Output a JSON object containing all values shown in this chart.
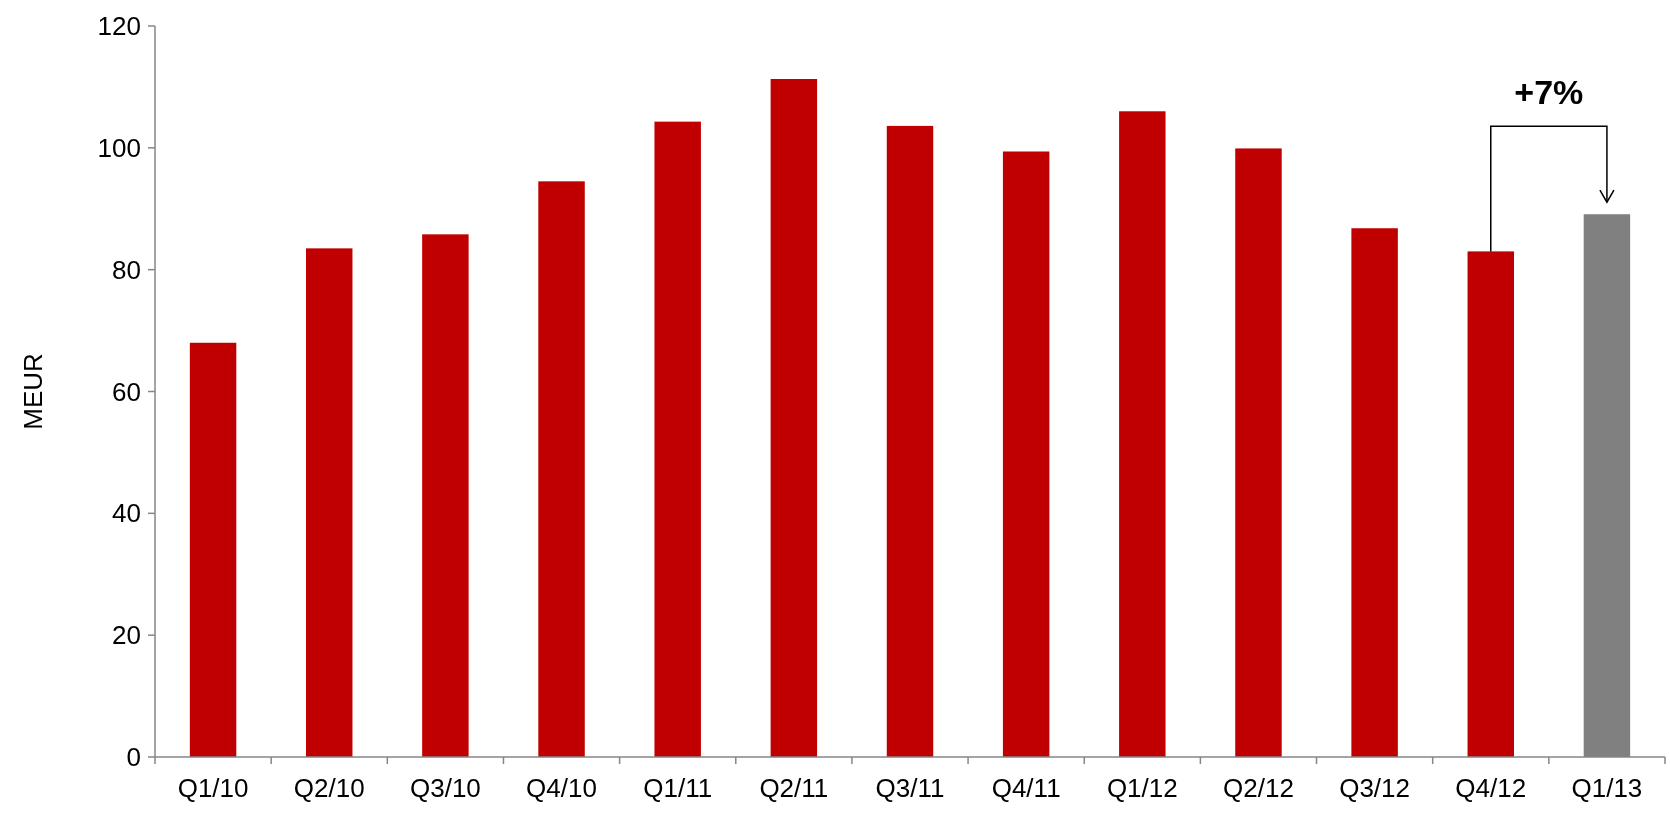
{
  "chart_data": {
    "type": "bar",
    "ylabel": "MEUR",
    "categories": [
      "Q1/10",
      "Q2/10",
      "Q3/10",
      "Q4/10",
      "Q1/11",
      "Q2/11",
      "Q3/11",
      "Q4/11",
      "Q1/12",
      "Q2/12",
      "Q3/12",
      "Q4/12",
      "Q1/13"
    ],
    "values": [
      68,
      83.5,
      85.8,
      94.5,
      104.3,
      111.3,
      103.6,
      99.4,
      106,
      99.9,
      86.8,
      83,
      89.1
    ],
    "colors": [
      "#c00000",
      "#c00000",
      "#c00000",
      "#c00000",
      "#c00000",
      "#c00000",
      "#c00000",
      "#c00000",
      "#c00000",
      "#c00000",
      "#c00000",
      "#c00000",
      "#808080"
    ],
    "ylim": [
      0,
      120
    ],
    "yticks": [
      0,
      20,
      40,
      60,
      80,
      100,
      120
    ],
    "annotations": [
      "+7%"
    ]
  }
}
